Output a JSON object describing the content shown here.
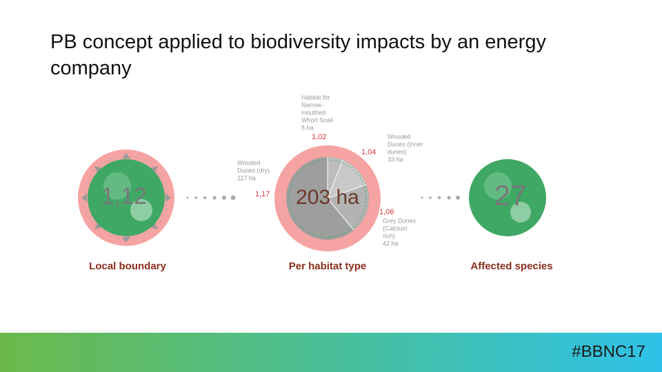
{
  "title": "PB concept applied to biodiversity impacts by an energy company",
  "panels": [
    {
      "value": "1,12",
      "label": "Local boundary"
    },
    {
      "value": "203 ha",
      "label": "Per habitat type"
    },
    {
      "value": "27",
      "label": "Affected species"
    }
  ],
  "habitats": [
    {
      "lines": [
        "Habitat for",
        "Narrow-",
        "mouthed",
        "Whorl Snail",
        "8 ha"
      ],
      "ratio": "1,02"
    },
    {
      "lines": [
        "Wooded",
        "Dunes (inner",
        "dunes)",
        "33 ha"
      ],
      "ratio": "1,04"
    },
    {
      "lines": [
        "Wooded",
        "Dunes (dry)",
        "117 ha"
      ],
      "ratio": "1,17"
    },
    {
      "lines": [
        "Grey Dunes",
        "(Calcium",
        "rich)",
        "42 ha"
      ],
      "ratio": "1,06"
    }
  ],
  "footer": "#BBNC17"
}
